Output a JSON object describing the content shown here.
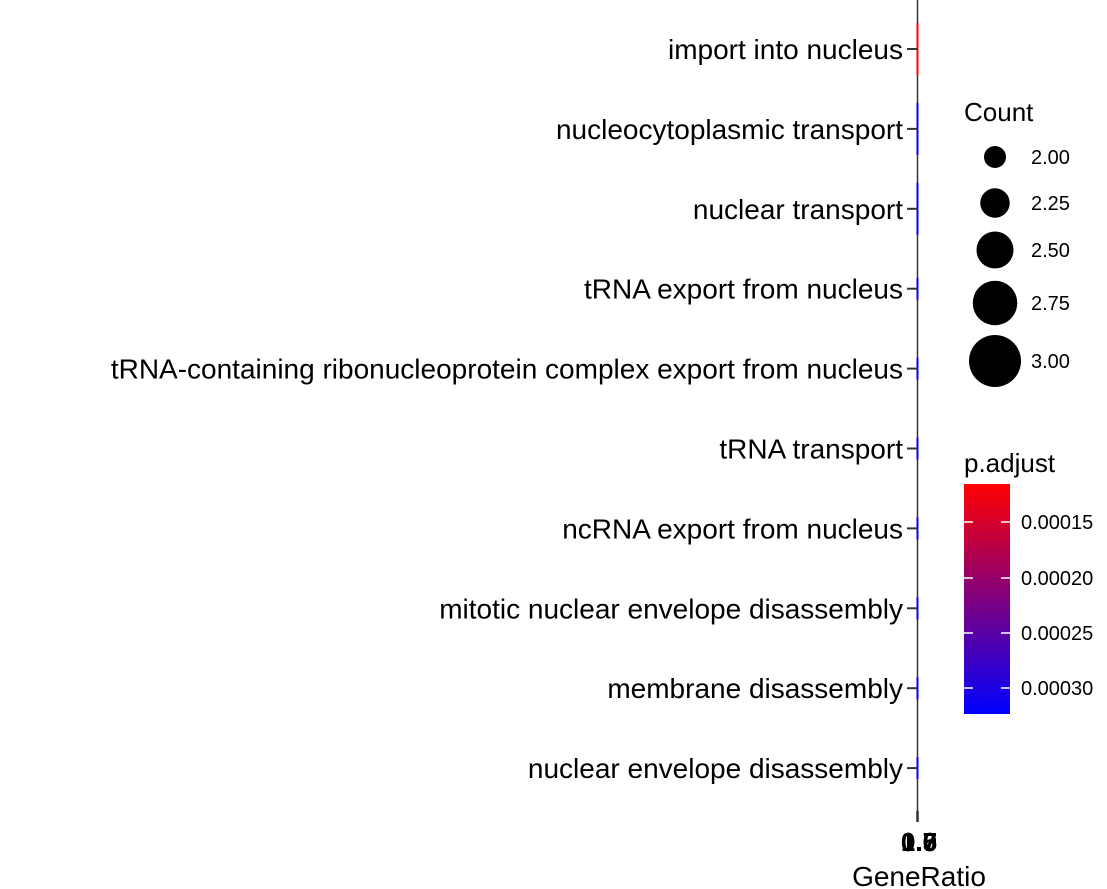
{
  "chart_data": {
    "type": "scatter",
    "xlabel": "GeneRatio",
    "x_tick_labels": [
      "1.0",
      "0.5",
      "0.0",
      "0.7"
    ],
    "categories": [
      "import into nucleus",
      "nucleocytoplasmic transport",
      "nuclear transport",
      "tRNA export from nucleus",
      "tRNA-containing ribonucleoprotein complex export from nucleus",
      "tRNA transport",
      "ncRNA export from nucleus",
      "mitotic nuclear envelope disassembly",
      "membrane disassembly",
      "nuclear envelope disassembly"
    ],
    "points": [
      {
        "category": "import into nucleus",
        "gene_ratio": 1.0,
        "count": 3,
        "p_adjust": 0.00011
      },
      {
        "category": "nucleocytoplasmic transport",
        "gene_ratio": 1.0,
        "count": 3,
        "p_adjust": 0.00031
      },
      {
        "category": "nuclear transport",
        "gene_ratio": 1.0,
        "count": 3,
        "p_adjust": 0.00031
      },
      {
        "category": "tRNA export from nucleus",
        "gene_ratio": 1.0,
        "count": 2,
        "p_adjust": 0.00031
      },
      {
        "category": "tRNA-containing ribonucleoprotein complex export from nucleus",
        "gene_ratio": 1.0,
        "count": 2,
        "p_adjust": 0.00031
      },
      {
        "category": "tRNA transport",
        "gene_ratio": 1.0,
        "count": 2,
        "p_adjust": 0.00031
      },
      {
        "category": "ncRNA export from nucleus",
        "gene_ratio": 1.0,
        "count": 2,
        "p_adjust": 0.00031
      },
      {
        "category": "mitotic nuclear envelope disassembly",
        "gene_ratio": 1.0,
        "count": 2,
        "p_adjust": 0.00031
      },
      {
        "category": "membrane disassembly",
        "gene_ratio": 1.0,
        "count": 2,
        "p_adjust": 0.00031
      },
      {
        "category": "nuclear envelope disassembly",
        "gene_ratio": 1.0,
        "count": 2,
        "p_adjust": 0.00031
      }
    ],
    "legend_count": {
      "title": "Count",
      "entries": [
        {
          "label": "2.00",
          "value": 2.0
        },
        {
          "label": "2.25",
          "value": 2.25
        },
        {
          "label": "2.50",
          "value": 2.5
        },
        {
          "label": "2.75",
          "value": 2.75
        },
        {
          "label": "3.00",
          "value": 3.0
        }
      ]
    },
    "legend_color": {
      "title": "p.adjust",
      "labels": [
        "0.00015",
        "0.00020",
        "0.00025",
        "0.00030"
      ],
      "low_color": "#ff0000",
      "high_color": "#0000ff"
    },
    "grid": false,
    "legend_position": "right"
  }
}
